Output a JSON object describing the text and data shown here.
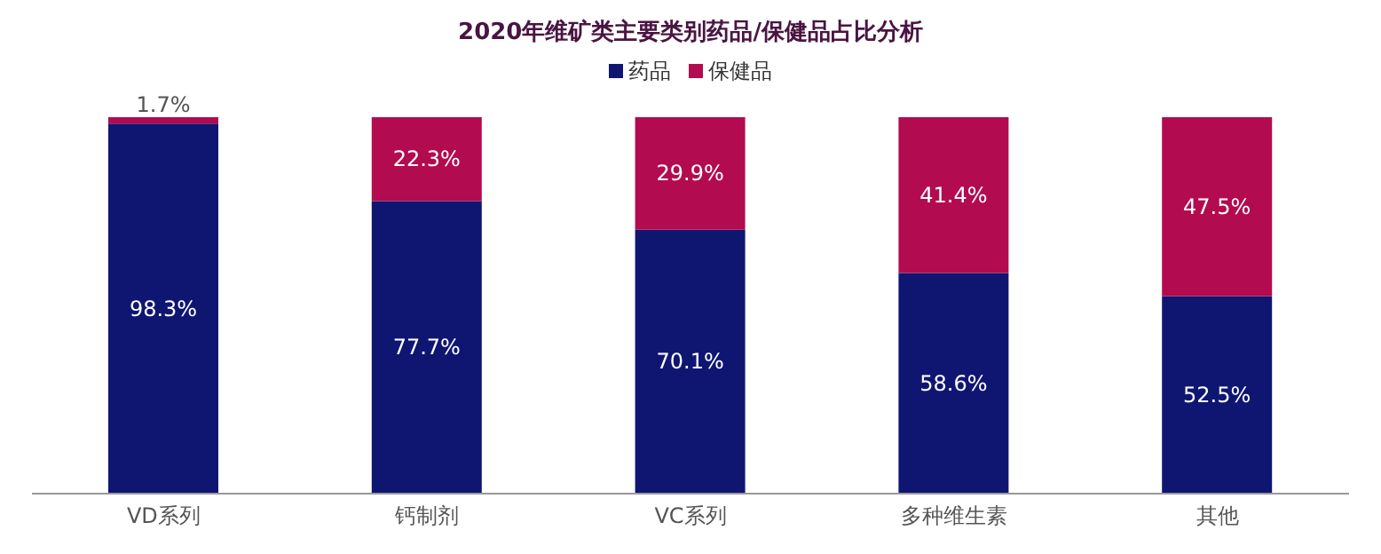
{
  "chart_data": {
    "type": "bar",
    "title": "2020年维矿类主要类别药品/保健品占比分析",
    "categories": [
      "VD系列",
      "钙制剂",
      "VC系列",
      "多种维生素",
      "其他"
    ],
    "series": [
      {
        "name": "药品",
        "color": "#0f1672",
        "values": [
          98.3,
          77.7,
          70.1,
          58.6,
          52.5
        ],
        "value_labels": [
          "98.3%",
          "77.7%",
          "70.1%",
          "58.6%",
          "52.5%"
        ]
      },
      {
        "name": "保健品",
        "color": "#b30b50",
        "values": [
          1.7,
          22.3,
          29.9,
          41.4,
          47.5
        ],
        "value_labels": [
          "1.7%",
          "22.3%",
          "29.9%",
          "41.4%",
          "47.5%"
        ]
      }
    ],
    "stacked": true,
    "legend": "top"
  }
}
